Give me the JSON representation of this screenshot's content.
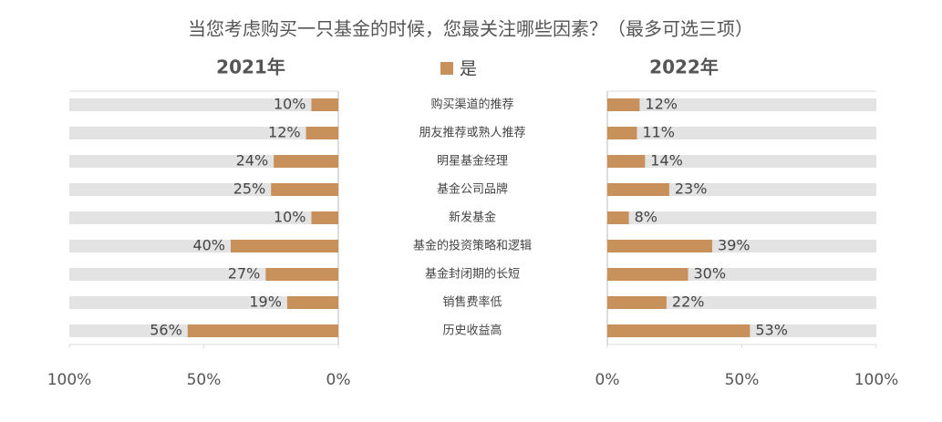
{
  "chart_data": {
    "type": "butterfly",
    "title": "当您考虑购买一只基金的时候，您最关注哪些因素？（最多可选三项）",
    "legend": "是",
    "color": "#c8905a",
    "categories": [
      "购买渠道的推荐",
      "朋友推荐或熟人推荐",
      "明星基金经理",
      "基金公司品牌",
      "新发基金",
      "基金的投资策略和逻辑",
      "基金封闭期的长短",
      "销售费率低",
      "历史收益高"
    ],
    "panels": [
      {
        "title": "2021年",
        "values": [
          10,
          12,
          24,
          25,
          10,
          40,
          27,
          19,
          56
        ],
        "value_labels": [
          "10%",
          "12%",
          "24%",
          "25%",
          "10%",
          "40%",
          "27%",
          "19%",
          "56%"
        ]
      },
      {
        "title": "2022年",
        "values": [
          12,
          11,
          14,
          23,
          8,
          39,
          30,
          22,
          53
        ],
        "value_labels": [
          "12%",
          "11%",
          "14%",
          "23%",
          "8%",
          "39%",
          "30%",
          "22%",
          "53%"
        ]
      }
    ],
    "xlim": [
      0,
      100
    ],
    "xticks": [
      {
        "value": 0,
        "label": "0%"
      },
      {
        "value": 50,
        "label": "50%"
      },
      {
        "value": 100,
        "label": "100%"
      }
    ]
  }
}
